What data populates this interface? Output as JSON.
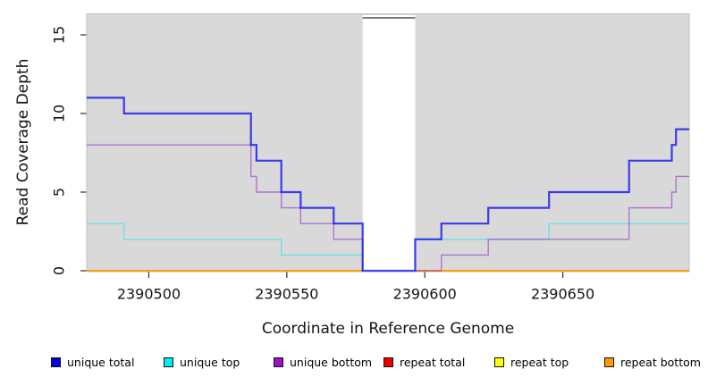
{
  "chart_data": {
    "type": "line",
    "subtype": "step-coverage",
    "title": "",
    "xlabel": "Coordinate in Reference Genome",
    "ylabel": "Read Coverage Depth",
    "x_ticks": [
      2390500,
      2390550,
      2390600,
      2390650
    ],
    "y_ticks": [
      0,
      5,
      10,
      15
    ],
    "xlim": [
      2390477.5,
      2390695.8
    ],
    "ylim": [
      0,
      16.4
    ],
    "grid": false,
    "legend_position": "bottom",
    "panel_bg": "#d9d9d9",
    "panel_border": "#bfbfbf",
    "gap": {
      "start": 2390577.5,
      "end": 2390596.5,
      "fill": "#ffffff",
      "cap_color": "#7c7c7c"
    },
    "series": [
      {
        "name": "repeat total",
        "layer": "below",
        "stroke": "#dd0000",
        "opacity": 0.9,
        "width": 1.4,
        "steps": [
          [
            2390477.5,
            0
          ]
        ]
      },
      {
        "name": "repeat top",
        "layer": "below",
        "stroke": "#ffff00",
        "opacity": 0.9,
        "width": 1.4,
        "steps": [
          [
            2390477.5,
            0
          ]
        ]
      },
      {
        "name": "repeat bottom",
        "layer": "below",
        "stroke": "#ff9900",
        "opacity": 0.87,
        "width": 1.8,
        "steps": [
          [
            2390477.5,
            0
          ]
        ]
      },
      {
        "name": "unique top",
        "layer": "below",
        "stroke": "#00e8f0",
        "opacity": 0.5,
        "width": 1.4,
        "steps": [
          [
            2390477.5,
            3
          ],
          [
            2390491,
            2
          ],
          [
            2390548,
            1
          ],
          [
            2390577.5,
            0
          ],
          [
            2390596.5,
            2
          ],
          [
            2390645,
            3
          ]
        ]
      },
      {
        "name": "unique bottom",
        "layer": "below",
        "stroke": "#8b1fc8",
        "opacity": 0.55,
        "width": 1.4,
        "steps": [
          [
            2390477.5,
            8
          ],
          [
            2390537,
            6
          ],
          [
            2390539,
            5
          ],
          [
            2390548,
            4
          ],
          [
            2390555,
            3
          ],
          [
            2390567,
            2
          ],
          [
            2390577.5,
            0
          ],
          [
            2390606,
            1
          ],
          [
            2390623,
            2
          ],
          [
            2390674,
            4
          ],
          [
            2390689.5,
            5
          ],
          [
            2390691,
            6
          ]
        ]
      },
      {
        "name": "unique total",
        "layer": "above",
        "stroke": "#0000ee",
        "opacity": 0.73,
        "width": 2.2,
        "steps": [
          [
            2390477.5,
            11
          ],
          [
            2390491,
            10
          ],
          [
            2390537,
            8
          ],
          [
            2390539,
            7
          ],
          [
            2390548,
            5
          ],
          [
            2390555,
            4
          ],
          [
            2390567,
            3
          ],
          [
            2390577.5,
            0
          ],
          [
            2390596.5,
            2
          ],
          [
            2390606,
            3
          ],
          [
            2390623,
            4
          ],
          [
            2390645,
            5
          ],
          [
            2390674,
            7
          ],
          [
            2390689.5,
            8
          ],
          [
            2390691,
            9
          ]
        ]
      }
    ],
    "legend": [
      {
        "label": "unique total",
        "color": "#0000e0"
      },
      {
        "label": "unique top",
        "color": "#00eeee"
      },
      {
        "label": "unique bottom",
        "color": "#9b10cc"
      },
      {
        "label": "repeat total",
        "color": "#ee0000"
      },
      {
        "label": "repeat top",
        "color": "#ffff00"
      },
      {
        "label": "repeat bottom",
        "color": "#ff9900"
      }
    ]
  }
}
